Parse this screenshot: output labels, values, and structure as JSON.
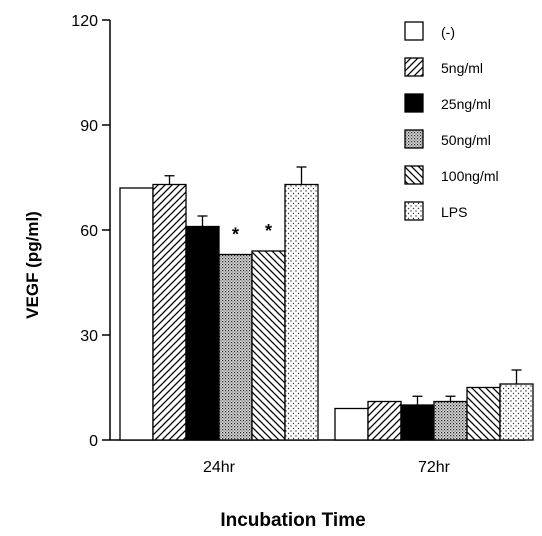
{
  "chart_data": {
    "type": "bar",
    "title": "",
    "xlabel": "Incubation Time",
    "ylabel": "VEGF (pg/ml)",
    "ylim": [
      0,
      120
    ],
    "yticks": [
      0,
      30,
      60,
      90,
      120
    ],
    "grid": false,
    "legend_position": "top-right",
    "categories": [
      "24hr",
      "72hr"
    ],
    "series": [
      {
        "name": "(-)",
        "pattern": "white",
        "values": [
          72,
          9
        ],
        "errors": [
          0,
          0
        ]
      },
      {
        "name": "5ng/ml",
        "pattern": "hatch-fwd",
        "values": [
          73,
          11
        ],
        "errors": [
          2.5,
          0
        ]
      },
      {
        "name": "25ng/ml",
        "pattern": "black",
        "values": [
          61,
          10
        ],
        "errors": [
          3,
          2.5
        ]
      },
      {
        "name": "50ng/ml",
        "pattern": "stipple-dense",
        "values": [
          53,
          11
        ],
        "errors": [
          0,
          1.5
        ]
      },
      {
        "name": "100ng/ml",
        "pattern": "hatch-back",
        "values": [
          54,
          15
        ],
        "errors": [
          0,
          0
        ]
      },
      {
        "name": "LPS",
        "pattern": "stipple-light",
        "values": [
          73,
          16
        ],
        "errors": [
          5,
          4
        ]
      }
    ],
    "annotations": [
      {
        "label": "*",
        "category": "24hr",
        "series": "50ng/ml"
      },
      {
        "label": "*",
        "category": "24hr",
        "series": "100ng/ml"
      }
    ]
  }
}
